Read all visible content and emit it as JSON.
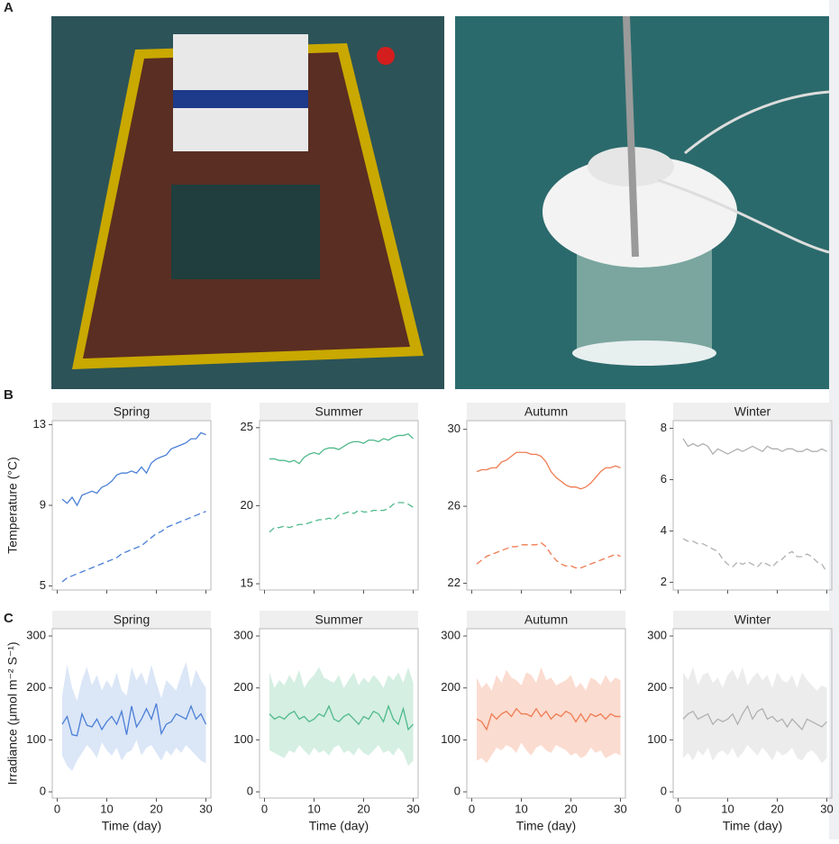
{
  "panel_labels": [
    "A",
    "B",
    "C"
  ],
  "chart_data": [
    {
      "type": "line",
      "title": "Spring",
      "ylabel": "Temperature (°C)",
      "xlim": [
        -1,
        31
      ],
      "xticks": [
        0,
        10,
        20,
        30
      ],
      "xtick_labels": false,
      "ylim": [
        4.8,
        13.2
      ],
      "yticks": [
        5,
        9,
        13
      ],
      "x": [
        1,
        2,
        3,
        4,
        5,
        6,
        7,
        8,
        9,
        10,
        11,
        12,
        13,
        14,
        15,
        16,
        17,
        18,
        19,
        20,
        21,
        22,
        23,
        24,
        25,
        26,
        27,
        28,
        29,
        30
      ],
      "series": [
        {
          "color": "#4a7fd6",
          "dashed": false,
          "values": [
            9.3,
            9.1,
            9.4,
            9.0,
            9.5,
            9.6,
            9.7,
            9.6,
            9.9,
            10.0,
            10.2,
            10.5,
            10.6,
            10.6,
            10.7,
            10.6,
            10.9,
            10.6,
            11.1,
            11.3,
            11.4,
            11.5,
            11.8,
            11.9,
            12.0,
            12.1,
            12.3,
            12.3,
            12.6,
            12.5
          ]
        },
        {
          "color": "#4a7fd6",
          "dashed": true,
          "values": [
            5.2,
            5.4,
            5.5,
            5.6,
            5.7,
            5.8,
            5.9,
            6.0,
            6.1,
            6.2,
            6.3,
            6.4,
            6.6,
            6.7,
            6.8,
            6.9,
            7.0,
            7.2,
            7.4,
            7.6,
            7.7,
            7.9,
            8.0,
            8.1,
            8.2,
            8.3,
            8.4,
            8.5,
            8.6,
            8.7
          ]
        }
      ]
    },
    {
      "type": "line",
      "title": "Summer",
      "xlim": [
        -1,
        31
      ],
      "xticks": [
        0,
        10,
        20,
        30
      ],
      "xtick_labels": false,
      "ylim": [
        14.6,
        25.45
      ],
      "yticks": [
        15,
        20,
        25
      ],
      "x": [
        1,
        2,
        3,
        4,
        5,
        6,
        7,
        8,
        9,
        10,
        11,
        12,
        13,
        14,
        15,
        16,
        17,
        18,
        19,
        20,
        21,
        22,
        23,
        24,
        25,
        26,
        27,
        28,
        29,
        30
      ],
      "series": [
        {
          "color": "#4fb98a",
          "dashed": false,
          "values": [
            23.0,
            23.0,
            22.9,
            22.9,
            22.8,
            22.9,
            22.7,
            23.1,
            23.3,
            23.4,
            23.3,
            23.6,
            23.7,
            23.7,
            23.6,
            23.8,
            24.0,
            24.1,
            24.1,
            24.0,
            24.2,
            24.2,
            24.1,
            24.3,
            24.2,
            24.4,
            24.5,
            24.5,
            24.6,
            24.3
          ]
        },
        {
          "color": "#4fb98a",
          "dashed": true,
          "values": [
            18.3,
            18.6,
            18.6,
            18.7,
            18.6,
            18.7,
            18.8,
            18.8,
            18.9,
            19.0,
            19.1,
            19.1,
            19.2,
            19.1,
            19.4,
            19.5,
            19.6,
            19.5,
            19.7,
            19.6,
            19.6,
            19.7,
            19.7,
            19.7,
            19.8,
            20.1,
            20.2,
            20.2,
            20.1,
            19.9
          ]
        }
      ]
    },
    {
      "type": "line",
      "title": "Autumn",
      "xlim": [
        -1,
        31
      ],
      "xticks": [
        0,
        10,
        20,
        30
      ],
      "xtick_labels": false,
      "ylim": [
        21.65,
        30.45
      ],
      "yticks": [
        22,
        26,
        30
      ],
      "x": [
        1,
        2,
        3,
        4,
        5,
        6,
        7,
        8,
        9,
        10,
        11,
        12,
        13,
        14,
        15,
        16,
        17,
        18,
        19,
        20,
        21,
        22,
        23,
        24,
        25,
        26,
        27,
        28,
        29,
        30
      ],
      "series": [
        {
          "color": "#ef7b52",
          "dashed": false,
          "values": [
            27.8,
            27.9,
            27.9,
            28.0,
            28.0,
            28.3,
            28.4,
            28.6,
            28.8,
            28.8,
            28.8,
            28.7,
            28.7,
            28.6,
            28.3,
            27.8,
            27.5,
            27.3,
            27.1,
            27.0,
            27.0,
            26.9,
            27.0,
            27.2,
            27.5,
            27.8,
            28.0,
            28.0,
            28.1,
            28.0
          ]
        },
        {
          "color": "#ef7b52",
          "dashed": true,
          "values": [
            23.0,
            23.2,
            23.4,
            23.5,
            23.6,
            23.7,
            23.8,
            23.9,
            23.9,
            24.0,
            24.0,
            24.0,
            24.0,
            24.1,
            23.9,
            23.5,
            23.2,
            23.0,
            22.9,
            22.9,
            22.8,
            22.8,
            22.9,
            23.0,
            23.1,
            23.2,
            23.3,
            23.4,
            23.5,
            23.4
          ]
        }
      ]
    },
    {
      "type": "line",
      "title": "Winter",
      "xlim": [
        -1,
        31
      ],
      "xticks": [
        0,
        10,
        20,
        30
      ],
      "xtick_labels": false,
      "ylim": [
        1.7,
        8.3
      ],
      "yticks": [
        2,
        4,
        6,
        8
      ],
      "x": [
        1,
        2,
        3,
        4,
        5,
        6,
        7,
        8,
        9,
        10,
        11,
        12,
        13,
        14,
        15,
        16,
        17,
        18,
        19,
        20,
        21,
        22,
        23,
        24,
        25,
        26,
        27,
        28,
        29,
        30
      ],
      "series": [
        {
          "color": "#b0b0b0",
          "dashed": false,
          "values": [
            7.6,
            7.3,
            7.4,
            7.3,
            7.4,
            7.3,
            7.0,
            7.2,
            7.1,
            7.0,
            7.1,
            7.2,
            7.1,
            7.2,
            7.3,
            7.2,
            7.1,
            7.3,
            7.2,
            7.2,
            7.1,
            7.2,
            7.2,
            7.1,
            7.1,
            7.2,
            7.1,
            7.1,
            7.2,
            7.1
          ]
        },
        {
          "color": "#b0b0b0",
          "dashed": true,
          "values": [
            3.7,
            3.6,
            3.6,
            3.5,
            3.5,
            3.4,
            3.3,
            3.2,
            2.9,
            2.7,
            2.6,
            2.8,
            2.7,
            2.8,
            2.7,
            2.6,
            2.8,
            2.7,
            2.6,
            2.8,
            2.9,
            3.1,
            3.2,
            3.0,
            3.0,
            3.1,
            3.0,
            2.8,
            2.7,
            2.4
          ]
        }
      ]
    },
    {
      "type": "line",
      "title": "Spring",
      "ylabel": "Irradiance (μmol m⁻² S⁻¹)",
      "xlabel": "Time (day)",
      "xlim": [
        -1,
        31
      ],
      "xticks": [
        0,
        10,
        20,
        30
      ],
      "ylim": [
        -12,
        314
      ],
      "yticks": [
        0,
        100,
        200,
        300
      ],
      "x": [
        1,
        2,
        3,
        4,
        5,
        6,
        7,
        8,
        9,
        10,
        11,
        12,
        13,
        14,
        15,
        16,
        17,
        18,
        19,
        20,
        21,
        22,
        23,
        24,
        25,
        26,
        27,
        28,
        29,
        30
      ],
      "series": [
        {
          "color": "#4a7fd6",
          "band_color": "#dbe6f7",
          "dashed": false,
          "values": [
            130,
            145,
            110,
            108,
            150,
            128,
            125,
            140,
            120,
            135,
            145,
            130,
            155,
            110,
            165,
            125,
            140,
            160,
            140,
            170,
            112,
            130,
            135,
            150,
            145,
            140,
            165,
            140,
            150,
            130
          ],
          "lower": [
            70,
            50,
            40,
            60,
            75,
            90,
            80,
            65,
            95,
            80,
            70,
            85,
            60,
            75,
            80,
            100,
            70,
            85,
            90,
            75,
            60,
            80,
            70,
            85,
            75,
            90,
            80,
            70,
            60,
            55
          ],
          "upper": [
            185,
            245,
            200,
            175,
            215,
            240,
            205,
            225,
            195,
            215,
            200,
            230,
            195,
            185,
            240,
            215,
            230,
            205,
            245,
            210,
            180,
            215,
            205,
            195,
            225,
            250,
            200,
            235,
            215,
            200
          ]
        }
      ]
    },
    {
      "type": "line",
      "title": "Summer",
      "xlabel": "Time (day)",
      "xlim": [
        -1,
        31
      ],
      "xticks": [
        0,
        10,
        20,
        30
      ],
      "ylim": [
        -12,
        314
      ],
      "yticks": [
        0,
        100,
        200,
        300
      ],
      "x": [
        1,
        2,
        3,
        4,
        5,
        6,
        7,
        8,
        9,
        10,
        11,
        12,
        13,
        14,
        15,
        16,
        17,
        18,
        19,
        20,
        21,
        22,
        23,
        24,
        25,
        26,
        27,
        28,
        29,
        30
      ],
      "series": [
        {
          "color": "#4fb98a",
          "band_color": "#d5efe2",
          "dashed": false,
          "values": [
            150,
            140,
            145,
            140,
            150,
            155,
            140,
            145,
            135,
            140,
            150,
            145,
            165,
            140,
            135,
            145,
            150,
            140,
            130,
            145,
            140,
            155,
            150,
            135,
            165,
            140,
            130,
            160,
            120,
            130
          ],
          "lower": [
            80,
            75,
            70,
            65,
            80,
            75,
            90,
            80,
            70,
            85,
            75,
            80,
            70,
            85,
            90,
            75,
            80,
            70,
            85,
            75,
            70,
            80,
            90,
            75,
            80,
            70,
            85,
            75,
            50,
            60
          ],
          "upper": [
            230,
            200,
            215,
            205,
            225,
            210,
            235,
            200,
            215,
            225,
            240,
            220,
            215,
            210,
            225,
            200,
            215,
            230,
            205,
            220,
            210,
            225,
            215,
            200,
            225,
            215,
            230,
            210,
            240,
            210
          ]
        }
      ]
    },
    {
      "type": "line",
      "title": "Autumn",
      "xlabel": "Time (day)",
      "xlim": [
        -1,
        31
      ],
      "xticks": [
        0,
        10,
        20,
        30
      ],
      "ylim": [
        -12,
        314
      ],
      "yticks": [
        0,
        100,
        200,
        300
      ],
      "x": [
        1,
        2,
        3,
        4,
        5,
        6,
        7,
        8,
        9,
        10,
        11,
        12,
        13,
        14,
        15,
        16,
        17,
        18,
        19,
        20,
        21,
        22,
        23,
        24,
        25,
        26,
        27,
        28,
        29,
        30
      ],
      "series": [
        {
          "color": "#ef7b52",
          "band_color": "#fbdcd0",
          "dashed": false,
          "values": [
            140,
            135,
            120,
            150,
            140,
            150,
            155,
            145,
            160,
            150,
            150,
            145,
            160,
            145,
            155,
            140,
            150,
            145,
            155,
            150,
            135,
            150,
            135,
            150,
            145,
            150,
            140,
            150,
            145,
            145
          ],
          "lower": [
            60,
            65,
            55,
            70,
            85,
            80,
            90,
            85,
            75,
            95,
            80,
            70,
            85,
            90,
            80,
            75,
            90,
            85,
            80,
            70,
            75,
            65,
            70,
            85,
            75,
            80,
            65,
            70,
            75,
            70
          ],
          "upper": [
            220,
            200,
            210,
            195,
            225,
            210,
            235,
            220,
            215,
            205,
            230,
            225,
            210,
            240,
            215,
            220,
            205,
            210,
            215,
            225,
            200,
            210,
            195,
            220,
            215,
            205,
            225,
            210,
            220,
            215
          ]
        }
      ]
    },
    {
      "type": "line",
      "title": "Winter",
      "xlabel": "Time (day)",
      "xlim": [
        -1,
        31
      ],
      "xticks": [
        0,
        10,
        20,
        30
      ],
      "ylim": [
        -12,
        314
      ],
      "yticks": [
        0,
        100,
        200,
        300
      ],
      "x": [
        1,
        2,
        3,
        4,
        5,
        6,
        7,
        8,
        9,
        10,
        11,
        12,
        13,
        14,
        15,
        16,
        17,
        18,
        19,
        20,
        21,
        22,
        23,
        24,
        25,
        26,
        27,
        28,
        29,
        30
      ],
      "series": [
        {
          "color": "#b0b0b0",
          "band_color": "#ececec",
          "dashed": false,
          "values": [
            140,
            150,
            155,
            140,
            145,
            150,
            130,
            140,
            135,
            140,
            150,
            130,
            150,
            165,
            140,
            155,
            160,
            140,
            145,
            135,
            140,
            125,
            140,
            130,
            120,
            140,
            135,
            130,
            125,
            135
          ],
          "lower": [
            65,
            75,
            60,
            80,
            70,
            85,
            60,
            75,
            80,
            70,
            85,
            65,
            75,
            90,
            80,
            70,
            85,
            75,
            60,
            80,
            70,
            75,
            85,
            65,
            60,
            75,
            80,
            70,
            55,
            65
          ],
          "upper": [
            230,
            215,
            240,
            205,
            225,
            230,
            210,
            220,
            200,
            225,
            235,
            215,
            240,
            205,
            220,
            230,
            215,
            225,
            200,
            230,
            215,
            210,
            225,
            200,
            230,
            215,
            205,
            195,
            205,
            200
          ]
        }
      ]
    }
  ]
}
